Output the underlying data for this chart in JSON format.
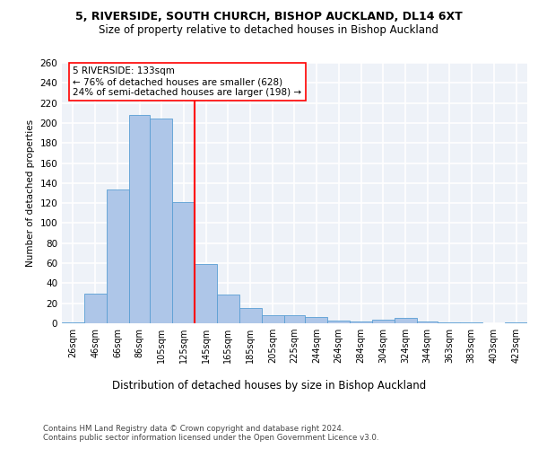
{
  "title1": "5, RIVERSIDE, SOUTH CHURCH, BISHOP AUCKLAND, DL14 6XT",
  "title2": "Size of property relative to detached houses in Bishop Auckland",
  "xlabel": "Distribution of detached houses by size in Bishop Auckland",
  "ylabel": "Number of detached properties",
  "footnote1": "Contains HM Land Registry data © Crown copyright and database right 2024.",
  "footnote2": "Contains public sector information licensed under the Open Government Licence v3.0.",
  "bar_color": "#aec6e8",
  "bar_edge_color": "#5a9fd4",
  "vline_color": "red",
  "vline_x": 135,
  "annotation_text": "5 RIVERSIDE: 133sqm\n← 76% of detached houses are smaller (628)\n24% of semi-detached houses are larger (198) →",
  "categories": [
    "26sqm",
    "46sqm",
    "66sqm",
    "86sqm",
    "105sqm",
    "125sqm",
    "145sqm",
    "165sqm",
    "185sqm",
    "205sqm",
    "225sqm",
    "244sqm",
    "264sqm",
    "284sqm",
    "304sqm",
    "324sqm",
    "344sqm",
    "363sqm",
    "383sqm",
    "403sqm",
    "423sqm"
  ],
  "bin_edges": [
    16,
    36,
    56,
    76,
    95,
    115,
    135,
    155,
    175,
    195,
    215,
    234,
    254,
    274,
    294,
    314,
    334,
    353,
    373,
    393,
    413,
    433
  ],
  "values": [
    1,
    30,
    134,
    208,
    204,
    121,
    59,
    29,
    15,
    8,
    8,
    6,
    3,
    2,
    4,
    5,
    2,
    1,
    1,
    0,
    1
  ],
  "ylim": [
    0,
    260
  ],
  "yticks": [
    0,
    20,
    40,
    60,
    80,
    100,
    120,
    140,
    160,
    180,
    200,
    220,
    240,
    260
  ],
  "background_color": "#eef2f8",
  "grid_color": "white"
}
